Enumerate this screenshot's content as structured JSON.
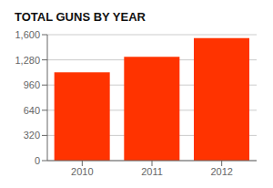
{
  "chart_data": {
    "type": "bar",
    "title": "TOTAL GUNS BY YEAR",
    "categories": [
      "2010",
      "2011",
      "2012"
    ],
    "values": [
      1123,
      1320,
      1556
    ],
    "color": "#FF3300",
    "ylim": [
      0,
      1600
    ],
    "yticks": [
      0,
      320,
      640,
      960,
      {
        "value": 1280,
        "label": "1,280"
      },
      {
        "value": 1600,
        "label": "1,600"
      }
    ],
    "grid": true
  }
}
